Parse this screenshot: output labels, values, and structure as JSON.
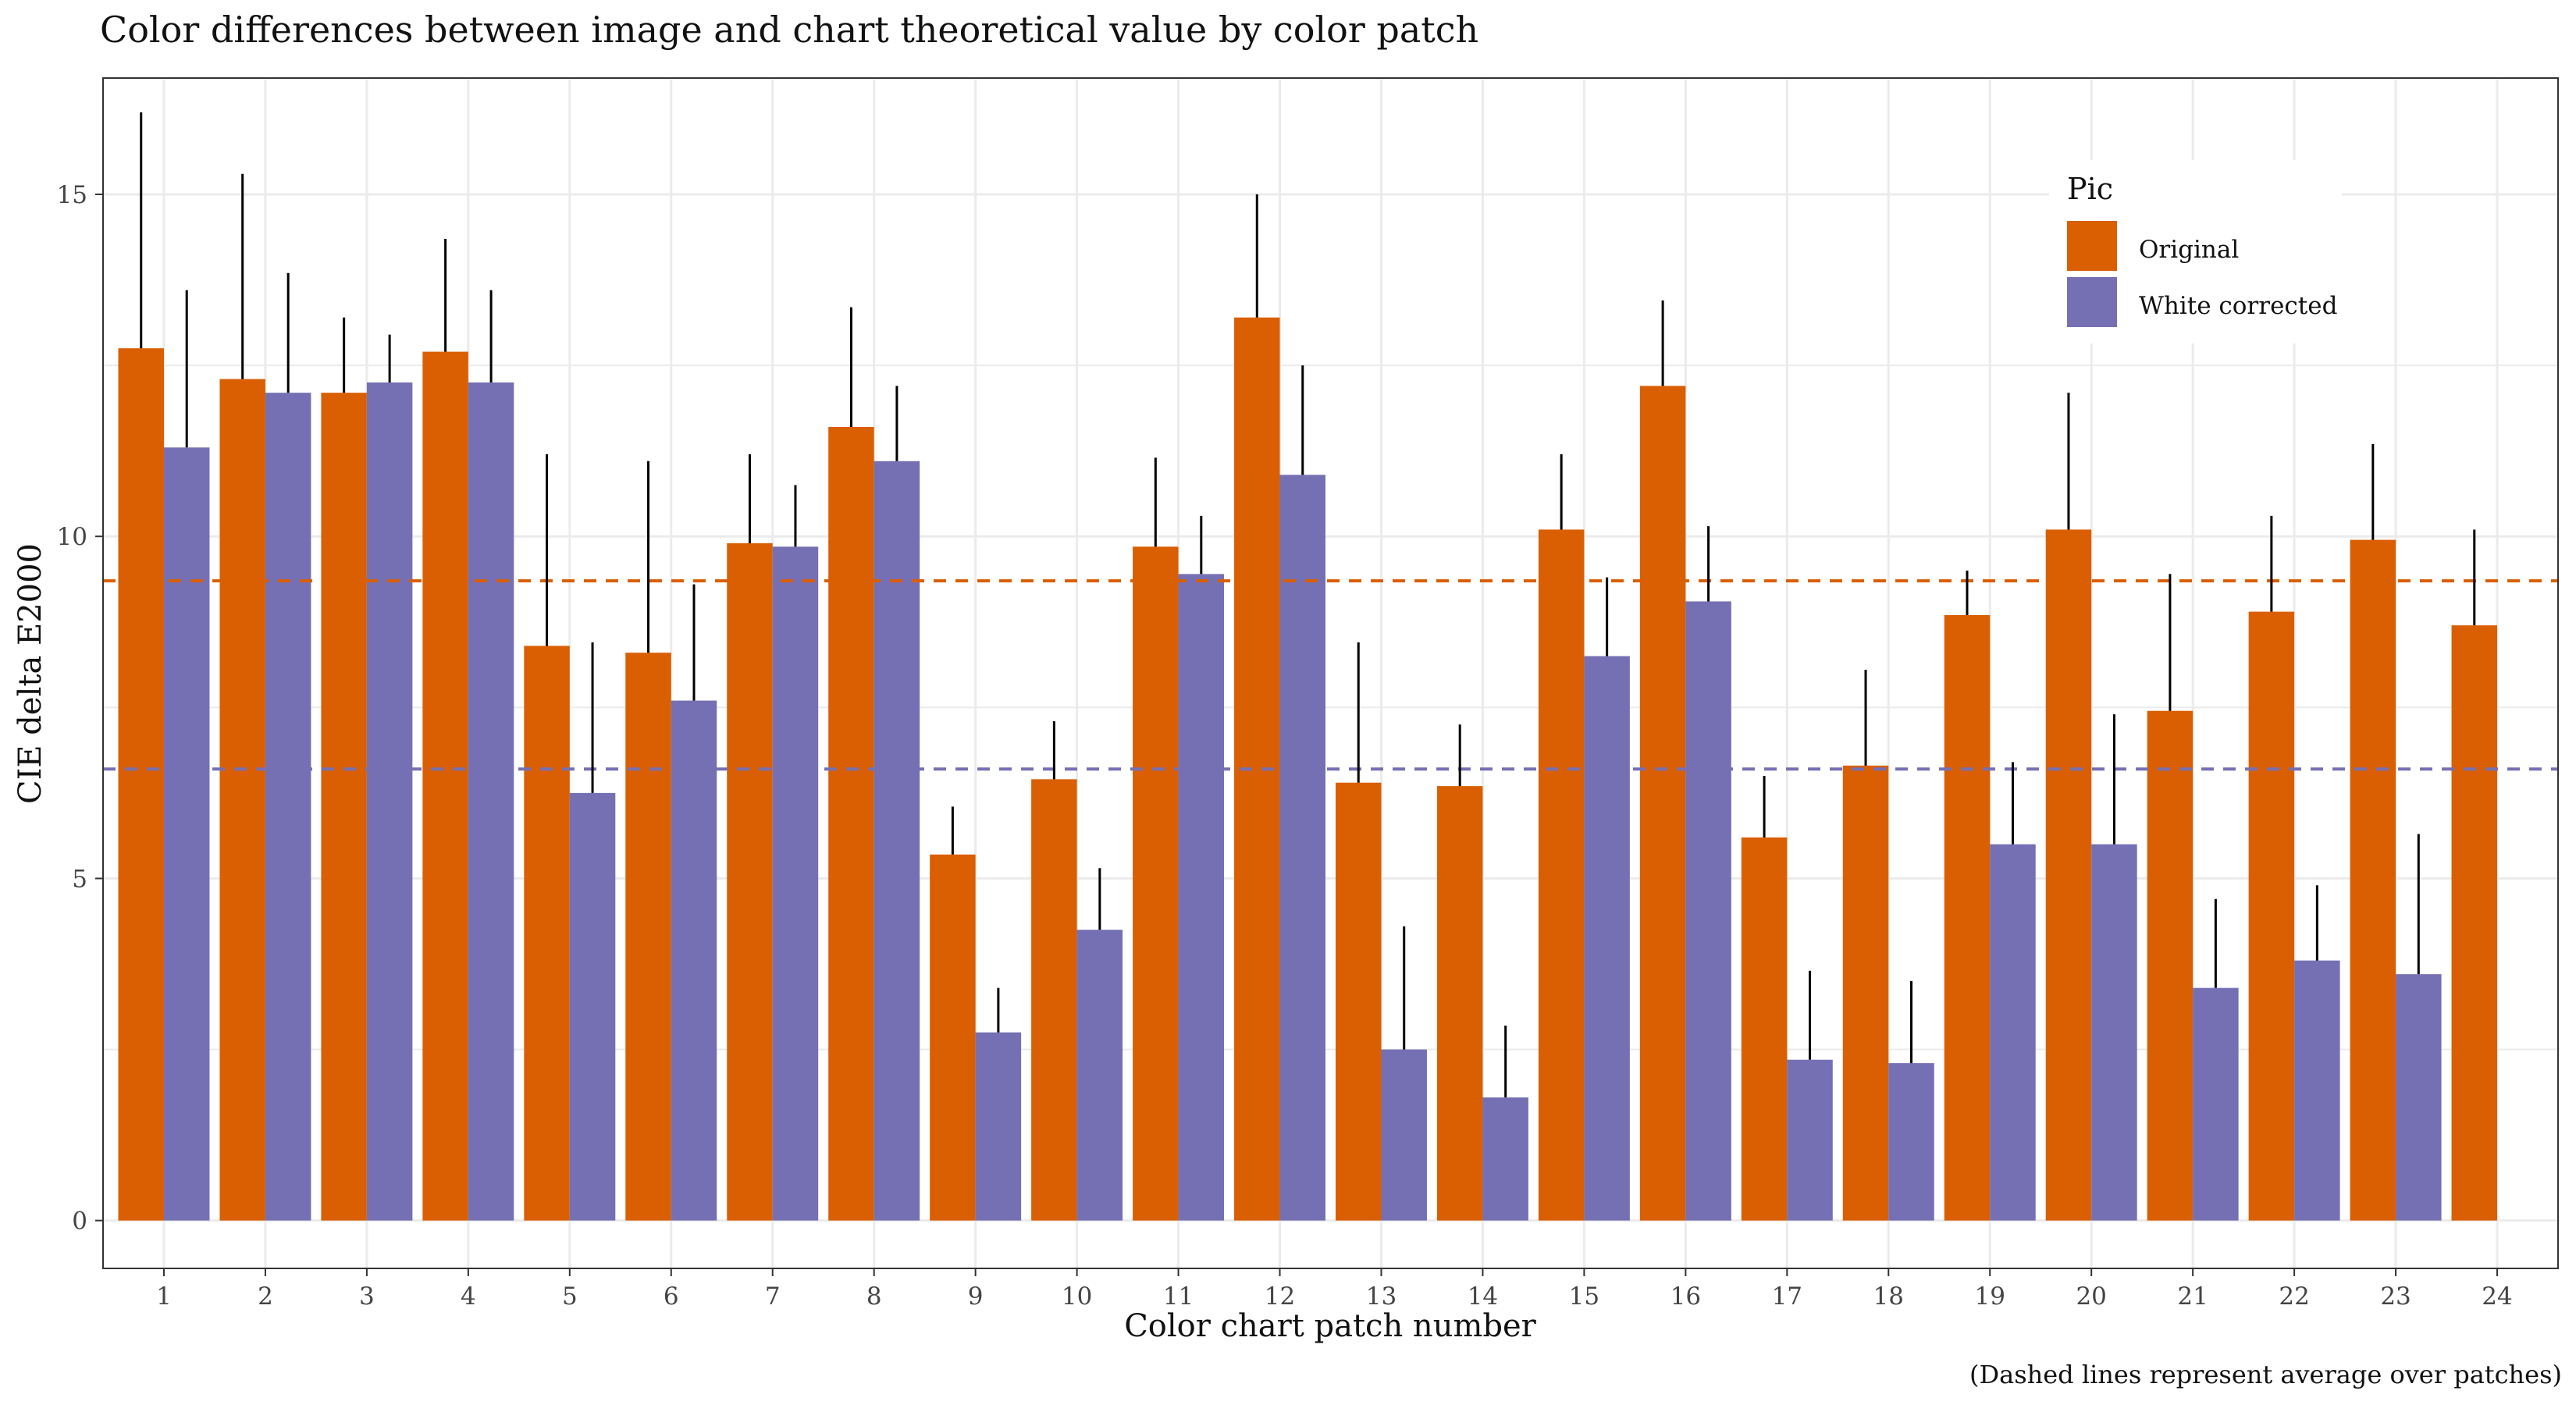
{
  "chart_data": {
    "type": "bar",
    "title": "Color differences between image and chart theoretical value by color patch",
    "xlabel": "Color chart patch number",
    "ylabel": "CIE delta E2000",
    "caption": "(Dashed lines represent average over patches)",
    "ylim": [
      -0.7,
      16.7
    ],
    "yticks": [
      0,
      5,
      10,
      15
    ],
    "grid": true,
    "legend": {
      "title": "Pic",
      "position": "top-right",
      "entries": [
        "Original",
        "White corrected"
      ]
    },
    "categories": [
      "1",
      "2",
      "3",
      "4",
      "5",
      "6",
      "7",
      "8",
      "9",
      "10",
      "11",
      "12",
      "13",
      "14",
      "15",
      "16",
      "17",
      "18",
      "19",
      "20",
      "21",
      "22",
      "23",
      "24"
    ],
    "series": [
      {
        "name": "Original",
        "color": "#d95f02",
        "values": [
          12.75,
          12.3,
          12.1,
          12.7,
          8.4,
          8.3,
          9.9,
          11.6,
          5.35,
          6.45,
          9.85,
          13.2,
          6.4,
          6.35,
          10.1,
          12.2,
          5.6,
          6.65,
          8.85,
          10.1,
          7.45,
          8.9,
          9.95,
          8.7
        ],
        "errors": [
          3.45,
          3.0,
          1.1,
          1.65,
          2.8,
          2.8,
          1.3,
          1.75,
          0.7,
          0.85,
          1.3,
          1.8,
          2.05,
          0.9,
          1.1,
          1.25,
          0.9,
          1.4,
          0.65,
          2.0,
          2.0,
          1.4,
          1.4,
          1.4
        ]
      },
      {
        "name": "White corrected",
        "color": "#7570b3",
        "values": [
          11.3,
          12.1,
          12.25,
          12.25,
          6.25,
          7.6,
          9.85,
          11.1,
          2.75,
          4.25,
          9.45,
          10.9,
          2.5,
          1.8,
          8.25,
          9.05,
          2.35,
          2.3,
          5.5,
          5.5,
          3.4,
          3.8,
          3.6,
          null
        ],
        "errors": [
          2.3,
          1.75,
          0.7,
          1.35,
          2.2,
          1.7,
          0.9,
          1.1,
          0.65,
          0.9,
          0.85,
          1.6,
          1.8,
          1.05,
          1.15,
          1.1,
          1.3,
          1.2,
          1.2,
          1.9,
          1.3,
          1.1,
          2.05,
          null
        ]
      }
    ],
    "reference_lines": [
      {
        "series": "Original",
        "value": 9.35,
        "style": "dashed",
        "color": "#d95f02"
      },
      {
        "series": "White corrected",
        "value": 6.6,
        "style": "dashed",
        "color": "#7570b3"
      }
    ],
    "colors": {
      "panel_border": "#333333",
      "grid": "#ebebeb",
      "error_bar": "#000000"
    }
  }
}
